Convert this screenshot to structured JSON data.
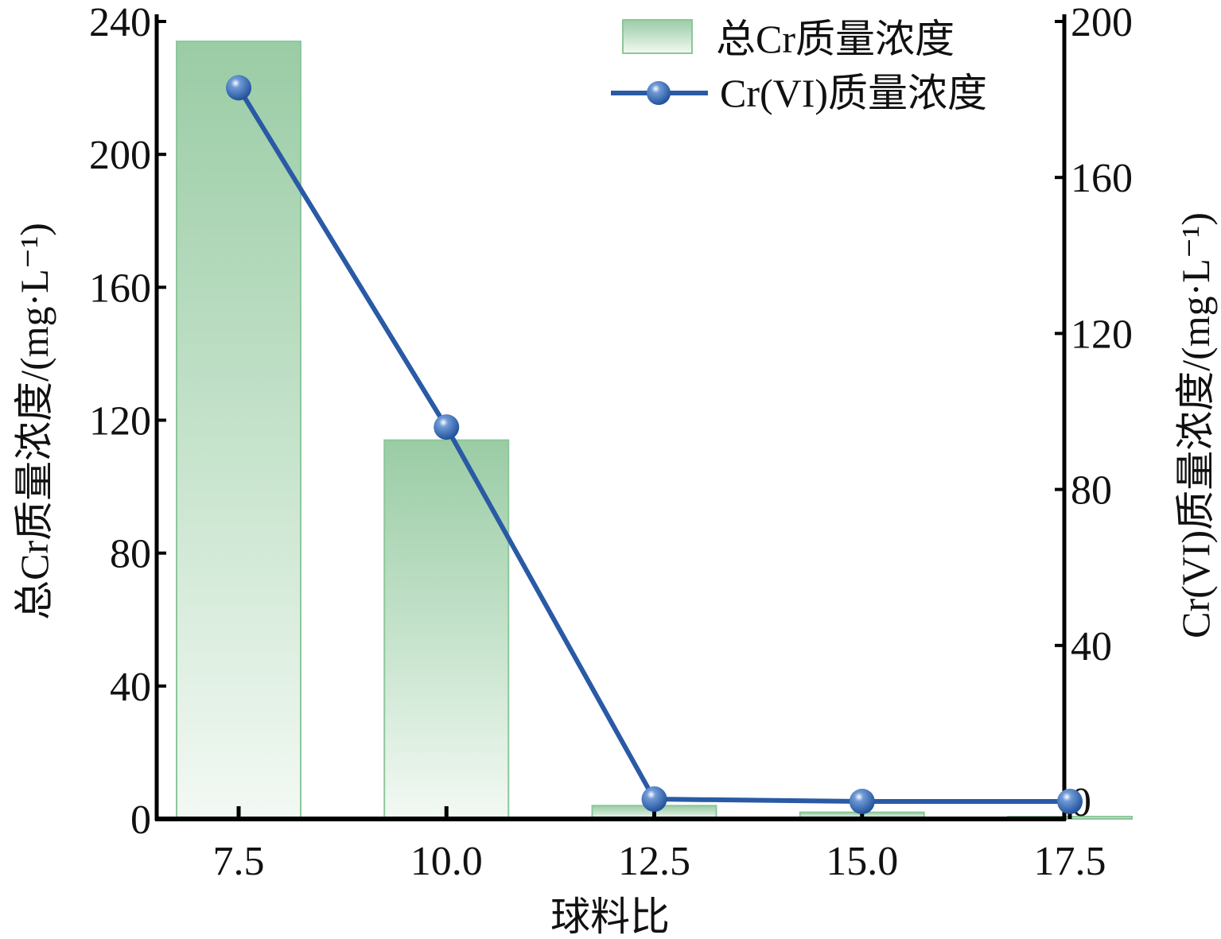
{
  "chart_data": {
    "type": "bar+line",
    "title": "",
    "xlabel": "球料比",
    "ylabel_left": "总Cr质量浓度/(mg·L⁻¹)",
    "ylabel_right": "Cr(VI)质量浓度/(mg·L⁻¹)",
    "categories": [
      "7.5",
      "10.0",
      "12.5",
      "15.0",
      "17.5"
    ],
    "x": [
      7.5,
      10.0,
      12.5,
      15.0,
      17.5
    ],
    "ylim_left": [
      0,
      240
    ],
    "yticks_left": [
      0,
      40,
      80,
      120,
      160,
      200,
      240
    ],
    "ylim_right": [
      0,
      200
    ],
    "yticks_right": [
      0,
      40,
      80,
      120,
      160,
      200
    ],
    "grid": false,
    "legend_position": "top-right",
    "series": [
      {
        "name": "总Cr质量浓度",
        "type": "bar",
        "axis": "left",
        "values": [
          234,
          114,
          4,
          2,
          0.7
        ],
        "color": "#9dcea8"
      },
      {
        "name": "Cr(VI)质量浓度",
        "type": "line",
        "axis": "right",
        "values": [
          183,
          96,
          0.6,
          0,
          0
        ],
        "color": "#2a5aa5"
      }
    ]
  }
}
